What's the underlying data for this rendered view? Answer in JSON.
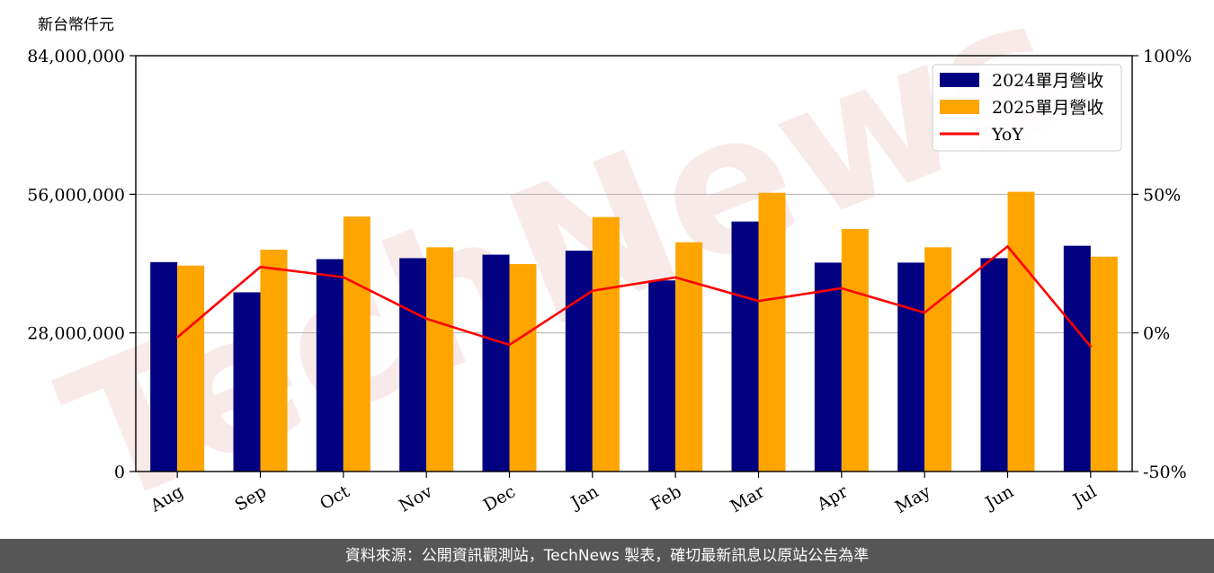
{
  "chart_data": {
    "type": "bar",
    "y_unit_label": "新台幣仟元",
    "categories": [
      "Aug",
      "Sep",
      "Oct",
      "Nov",
      "Dec",
      "Jan",
      "Feb",
      "Mar",
      "Apr",
      "May",
      "Jun",
      "Jul"
    ],
    "series": [
      {
        "name": "2024單月營收",
        "type": "bar",
        "color": "#000080",
        "values": [
          42300000,
          36200000,
          42900000,
          43100000,
          43800000,
          44600000,
          38600000,
          50500000,
          42200000,
          42200000,
          43100000,
          45600000
        ]
      },
      {
        "name": "2025單月營收",
        "type": "bar",
        "color": "#ffa500",
        "values": [
          41600000,
          44800000,
          51500000,
          45300000,
          41900000,
          51400000,
          46300000,
          56300000,
          49000000,
          45300000,
          56500000,
          43400000
        ]
      },
      {
        "name": "YoY",
        "type": "line",
        "axis": "right",
        "color": "#ff0000",
        "values": [
          -1.6,
          23.8,
          20.1,
          5.1,
          -4.3,
          15.2,
          20.0,
          11.5,
          16.1,
          7.3,
          31.2,
          -4.9
        ]
      }
    ],
    "y_left": {
      "min": 0,
      "max": 84000000,
      "ticks": [
        0,
        28000000,
        56000000,
        84000000
      ],
      "tick_labels": [
        "0",
        "28,000,000",
        "56,000,000",
        "84,000,000"
      ]
    },
    "y_right": {
      "min": -50,
      "max": 100,
      "ticks": [
        -50,
        0,
        50,
        100
      ],
      "tick_labels": [
        "-50%",
        "0%",
        "50%",
        "100%"
      ]
    },
    "grid": "horizontal",
    "legend_position": "top-right",
    "watermark": "TechNews"
  },
  "footer": {
    "source_text": "資料來源：公開資訊觀測站，TechNews 製表，確切最新訊息以原站公告為準"
  }
}
